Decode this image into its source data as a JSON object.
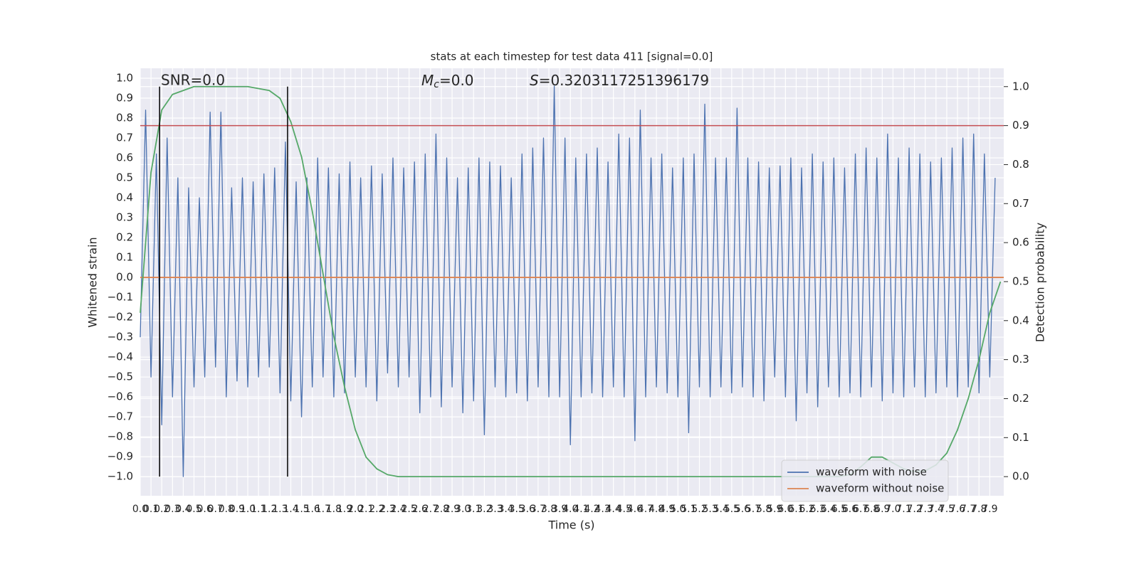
{
  "chart_data": {
    "type": "line",
    "title": "stats at each timestep for test data 411 [signal=0.0]",
    "xlabel": "Time (s)",
    "ylabel": "Whitened strain",
    "y2label": "Detection probability",
    "annotations": {
      "snr": "SNR=0.0",
      "mc": {
        "symbol": "M",
        "subscript": "c",
        "text": "=0.0"
      },
      "s": {
        "symbol": "S",
        "text": "=0.3203117251396179"
      }
    },
    "xlim": [
      0,
      8.03
    ],
    "ylim": [
      -1.096,
      1.05
    ],
    "y2lim": [
      -0.049,
      1.047
    ],
    "grid": true,
    "legend": "lower right",
    "xticks": [
      {
        "value": 0,
        "label": "0.0"
      },
      0.1,
      0.2,
      0.3,
      0.4,
      0.5,
      0.6,
      0.7,
      0.8,
      0.9,
      {
        "value": 1,
        "label": "1.0"
      },
      1.1,
      1.2,
      1.3,
      1.4,
      1.5,
      1.6,
      1.7,
      1.8,
      1.9,
      {
        "value": 2,
        "label": "2.0"
      },
      2.1,
      2.2,
      2.3,
      2.4,
      2.5,
      2.6,
      2.7,
      2.8,
      2.9,
      {
        "value": 3,
        "label": "3.0"
      },
      3.1,
      3.2,
      3.3,
      3.4,
      3.5,
      3.6,
      3.7,
      3.8,
      3.9,
      {
        "value": 4,
        "label": "4.0"
      },
      4.1,
      4.2,
      4.3,
      4.4,
      4.5,
      4.6,
      4.7,
      4.8,
      4.9,
      {
        "value": 5,
        "label": "5.0"
      },
      5.1,
      5.2,
      5.3,
      5.4,
      5.5,
      5.6,
      5.7,
      5.8,
      5.9,
      {
        "value": 6,
        "label": "6.0"
      },
      6.1,
      6.2,
      6.3,
      6.4,
      6.5,
      6.6,
      6.7,
      6.8,
      6.9,
      {
        "value": 7,
        "label": "7.0"
      },
      7.1,
      7.2,
      7.3,
      7.4,
      7.5,
      7.6,
      7.7,
      7.8,
      7.9
    ],
    "yticks": [
      {
        "value": -1,
        "label": "−1.0"
      },
      {
        "value": -0.9,
        "label": "−0.9"
      },
      {
        "value": -0.8,
        "label": "−0.8"
      },
      {
        "value": -0.7,
        "label": "−0.7"
      },
      {
        "value": -0.6,
        "label": "−0.6"
      },
      {
        "value": -0.5,
        "label": "−0.5"
      },
      {
        "value": -0.4,
        "label": "−0.4"
      },
      {
        "value": -0.3,
        "label": "−0.3"
      },
      {
        "value": -0.2,
        "label": "−0.2"
      },
      {
        "value": -0.1,
        "label": "−0.1"
      },
      {
        "value": 0,
        "label": "0.0"
      },
      0.1,
      0.2,
      0.3,
      0.4,
      0.5,
      0.6,
      0.7,
      0.8,
      0.9,
      {
        "value": 1,
        "label": "1.0"
      }
    ],
    "y2ticks": [
      {
        "value": 0,
        "label": "0.0"
      },
      0.1,
      0.2,
      0.3,
      0.4,
      0.5,
      0.6,
      0.7,
      0.8,
      0.9,
      {
        "value": 1,
        "label": "1.0"
      }
    ],
    "series": [
      {
        "name": "waveform with noise",
        "color": "#4c72b0",
        "x": [
          0,
          0.05,
          0.1,
          0.15,
          0.2,
          0.25,
          0.3,
          0.35,
          0.4,
          0.45,
          0.5,
          0.55,
          0.6,
          0.65,
          0.7,
          0.75,
          0.8,
          0.85,
          0.9,
          0.95,
          1,
          1.05,
          1.1,
          1.15,
          1.2,
          1.25,
          1.3,
          1.35,
          1.4,
          1.45,
          1.5,
          1.55,
          1.6,
          1.65,
          1.7,
          1.75,
          1.8,
          1.85,
          1.9,
          1.95,
          2,
          2.05,
          2.1,
          2.15,
          2.2,
          2.25,
          2.3,
          2.35,
          2.4,
          2.45,
          2.5,
          2.55,
          2.6,
          2.65,
          2.7,
          2.75,
          2.8,
          2.85,
          2.9,
          2.95,
          3,
          3.05,
          3.1,
          3.15,
          3.2,
          3.25,
          3.3,
          3.35,
          3.4,
          3.45,
          3.5,
          3.55,
          3.6,
          3.65,
          3.7,
          3.75,
          3.8,
          3.85,
          3.9,
          3.95,
          4,
          4.05,
          4.1,
          4.15,
          4.2,
          4.25,
          4.3,
          4.35,
          4.4,
          4.45,
          4.5,
          4.55,
          4.6,
          4.65,
          4.7,
          4.75,
          4.8,
          4.85,
          4.9,
          4.95,
          5,
          5.05,
          5.1,
          5.15,
          5.2,
          5.25,
          5.3,
          5.35,
          5.4,
          5.45,
          5.5,
          5.55,
          5.6,
          5.65,
          5.7,
          5.75,
          5.8,
          5.85,
          5.9,
          5.95,
          6,
          6.05,
          6.1,
          6.15,
          6.2,
          6.25,
          6.3,
          6.35,
          6.4,
          6.45,
          6.5,
          6.55,
          6.6,
          6.65,
          6.7,
          6.75,
          6.8,
          6.85,
          6.9,
          6.95,
          7,
          7.05,
          7.1,
          7.15,
          7.2,
          7.25,
          7.3,
          7.35,
          7.4,
          7.45,
          7.5,
          7.55,
          7.6,
          7.65,
          7.7,
          7.75,
          7.8,
          7.85,
          7.9,
          7.95
        ],
        "values": [
          -0.3,
          0.84,
          -0.5,
          0.62,
          -0.74,
          0.7,
          -0.6,
          0.5,
          -1.0,
          0.45,
          -0.55,
          0.4,
          -0.5,
          0.83,
          -0.45,
          0.83,
          -0.6,
          0.45,
          -0.52,
          0.5,
          -0.55,
          0.48,
          -0.5,
          0.52,
          -0.45,
          0.55,
          -0.58,
          0.68,
          -0.62,
          0.48,
          -0.7,
          0.5,
          -0.55,
          0.6,
          -0.5,
          0.55,
          -0.6,
          0.52,
          -0.58,
          0.58,
          -0.5,
          0.5,
          -0.55,
          0.56,
          -0.62,
          0.52,
          -0.48,
          0.6,
          -0.55,
          0.55,
          -0.5,
          0.58,
          -0.68,
          0.62,
          -0.6,
          0.72,
          -0.65,
          0.6,
          -0.55,
          0.5,
          -0.68,
          0.55,
          -0.62,
          0.6,
          -0.79,
          0.58,
          -0.55,
          0.56,
          -0.6,
          0.5,
          -0.58,
          0.62,
          -0.62,
          0.65,
          -0.55,
          0.7,
          -0.6,
          0.96,
          -0.6,
          0.7,
          -0.84,
          0.6,
          -0.6,
          0.62,
          -0.58,
          0.65,
          -0.6,
          0.58,
          -0.55,
          0.72,
          -0.6,
          0.7,
          -0.82,
          0.84,
          -0.6,
          0.6,
          -0.55,
          0.62,
          -0.58,
          0.55,
          -0.6,
          0.6,
          -0.78,
          0.62,
          -0.55,
          0.87,
          -0.6,
          0.6,
          -0.55,
          0.6,
          -0.58,
          0.85,
          -0.55,
          0.6,
          -0.6,
          0.58,
          -0.62,
          0.55,
          -0.5,
          0.56,
          -0.6,
          0.6,
          -0.72,
          0.55,
          -0.58,
          0.62,
          -0.65,
          0.58,
          -0.55,
          0.6,
          -0.6,
          0.55,
          -0.58,
          0.62,
          -0.6,
          0.65,
          -0.55,
          0.6,
          -0.62,
          0.72,
          -0.58,
          0.6,
          -0.6,
          0.65,
          -0.55,
          0.62,
          -0.6,
          0.58,
          -0.58,
          0.6,
          -0.55,
          0.65,
          -0.6,
          0.7,
          -0.55,
          0.72,
          -0.58,
          0.62,
          -0.5,
          0.5
        ]
      },
      {
        "name": "waveform without noise",
        "color": "#dd8452",
        "x": [
          0,
          8.03
        ],
        "values": [
          0,
          0
        ]
      },
      {
        "color": "#55a868",
        "axis": "y2",
        "x": [
          0,
          0.1,
          0.2,
          0.3,
          0.4,
          0.5,
          0.6,
          0.7,
          0.8,
          0.9,
          1,
          1.1,
          1.2,
          1.3,
          1.4,
          1.5,
          1.6,
          1.7,
          1.8,
          1.9,
          2,
          2.1,
          2.2,
          2.3,
          2.4,
          2.5,
          2.6,
          2.7,
          2.8,
          2.9,
          3,
          3.1,
          3.2,
          3.3,
          3.4,
          3.5,
          3.6,
          3.7,
          3.8,
          3.9,
          4,
          4.1,
          4.2,
          4.3,
          4.4,
          4.5,
          4.6,
          4.7,
          4.8,
          4.9,
          5,
          5.1,
          5.2,
          5.3,
          5.4,
          5.5,
          5.6,
          5.7,
          5.8,
          5.9,
          6,
          6.1,
          6.2,
          6.3,
          6.4,
          6.5,
          6.6,
          6.7,
          6.8,
          6.9,
          7,
          7.1,
          7.2,
          7.3,
          7.4,
          7.5,
          7.6,
          7.7,
          7.8,
          7.9,
          8
        ],
        "values": [
          0.42,
          0.78,
          0.94,
          0.98,
          0.99,
          1,
          1,
          1,
          1,
          1,
          1,
          0.995,
          0.99,
          0.97,
          0.91,
          0.82,
          0.68,
          0.52,
          0.36,
          0.23,
          0.12,
          0.05,
          0.02,
          0.005,
          0,
          0,
          0,
          0,
          0,
          0,
          0,
          0,
          0,
          0,
          0,
          0,
          0,
          0,
          0,
          0,
          0,
          0,
          0,
          0,
          0,
          0,
          0,
          0,
          0,
          0,
          0,
          0,
          0,
          0,
          0,
          0,
          0,
          0,
          0,
          0,
          0,
          0,
          0,
          0,
          0,
          0,
          0.005,
          0.025,
          0.05,
          0.05,
          0.035,
          0.02,
          0.013,
          0.015,
          0.03,
          0.06,
          0.12,
          0.2,
          0.3,
          0.42,
          0.5
        ]
      }
    ],
    "hline": {
      "value": 0.9,
      "axis": "y2",
      "color": "#c44e52"
    },
    "vlines": {
      "x": [
        0.18,
        1.37
      ],
      "ymin": 0,
      "ymax": 1,
      "axis": "y2",
      "color": "#000000"
    }
  }
}
